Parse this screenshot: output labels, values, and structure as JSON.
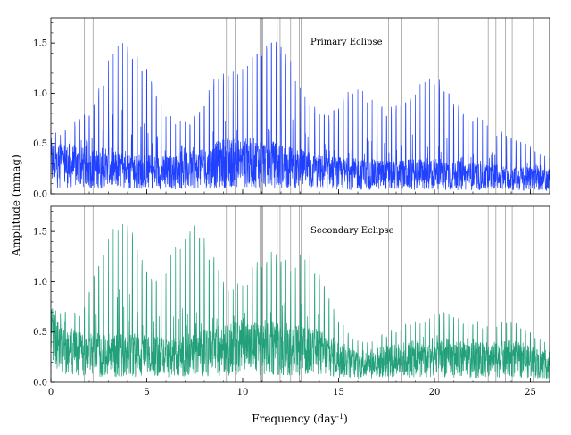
{
  "figure": {
    "xlabel_main": "Frequency (day",
    "xlabel_sup": "-1",
    "xlabel_end": ")",
    "ylabel": "Amplitude (mmag)"
  },
  "chart_data": [
    {
      "type": "line",
      "title": "Primary Eclipse",
      "xlabel": "Frequency (day-1)",
      "ylabel": "Amplitude (mmag)",
      "xlim": [
        0,
        26
      ],
      "ylim": [
        0,
        1.75
      ],
      "xticks": [
        0,
        5,
        10,
        15,
        20,
        25
      ],
      "yticks": [
        0.0,
        0.5,
        1.0,
        1.5
      ],
      "grid": false,
      "color": "#2040ff",
      "baseline": [
        [
          0,
          0.4
        ],
        [
          2,
          0.32
        ],
        [
          4,
          0.3
        ],
        [
          6,
          0.27
        ],
        [
          8,
          0.32
        ],
        [
          9,
          0.4
        ],
        [
          11,
          0.4
        ],
        [
          12,
          0.36
        ],
        [
          14,
          0.28
        ],
        [
          16,
          0.25
        ],
        [
          18,
          0.24
        ],
        [
          20,
          0.26
        ],
        [
          22,
          0.22
        ],
        [
          24,
          0.2
        ],
        [
          26,
          0.18
        ]
      ],
      "envelope": [
        [
          0.0,
          0.6
        ],
        [
          1.0,
          0.68
        ],
        [
          2.0,
          0.85
        ],
        [
          2.5,
          1.05
        ],
        [
          3.0,
          1.35
        ],
        [
          3.5,
          1.5
        ],
        [
          4.0,
          1.56
        ],
        [
          4.5,
          1.45
        ],
        [
          5.0,
          1.25
        ],
        [
          5.5,
          1.0
        ],
        [
          6.0,
          0.85
        ],
        [
          7.0,
          0.72
        ],
        [
          7.5,
          0.8
        ],
        [
          8.0,
          0.95
        ],
        [
          8.5,
          1.15
        ],
        [
          9.0,
          1.22
        ],
        [
          9.5,
          1.28
        ],
        [
          10.0,
          1.35
        ],
        [
          10.5,
          1.45
        ],
        [
          11.0,
          1.5
        ],
        [
          11.5,
          1.55
        ],
        [
          12.0,
          1.48
        ],
        [
          12.5,
          1.35
        ],
        [
          13.0,
          1.15
        ],
        [
          13.5,
          0.95
        ],
        [
          14.0,
          0.8
        ],
        [
          14.5,
          0.78
        ],
        [
          15.0,
          0.9
        ],
        [
          15.5,
          1.02
        ],
        [
          16.0,
          1.05
        ],
        [
          16.5,
          1.0
        ],
        [
          17.0,
          0.92
        ],
        [
          17.5,
          0.85
        ],
        [
          18.0,
          0.88
        ],
        [
          18.5,
          0.95
        ],
        [
          19.0,
          1.05
        ],
        [
          19.5,
          1.15
        ],
        [
          20.0,
          1.18
        ],
        [
          20.5,
          1.1
        ],
        [
          21.0,
          0.95
        ],
        [
          21.5,
          0.85
        ],
        [
          22.0,
          0.8
        ],
        [
          22.5,
          0.75
        ],
        [
          23.0,
          0.68
        ],
        [
          24.0,
          0.58
        ],
        [
          25.0,
          0.48
        ],
        [
          26.0,
          0.4
        ]
      ],
      "comb_spacing": 0.25
    },
    {
      "type": "line",
      "title": "Secondary Eclipse",
      "xlabel": "Frequency (day-1)",
      "ylabel": "Amplitude (mmag)",
      "xlim": [
        0,
        26
      ],
      "ylim": [
        0,
        1.75
      ],
      "xticks": [
        0,
        5,
        10,
        15,
        20,
        25
      ],
      "yticks": [
        0.0,
        0.5,
        1.0,
        1.5
      ],
      "grid": false,
      "color": "#22a07a",
      "baseline": [
        [
          0,
          0.55
        ],
        [
          1,
          0.4
        ],
        [
          2,
          0.35
        ],
        [
          4,
          0.35
        ],
        [
          6,
          0.32
        ],
        [
          8,
          0.38
        ],
        [
          10,
          0.45
        ],
        [
          12,
          0.45
        ],
        [
          13,
          0.4
        ],
        [
          14,
          0.38
        ],
        [
          15,
          0.3
        ],
        [
          16,
          0.22
        ],
        [
          18,
          0.28
        ],
        [
          20,
          0.32
        ],
        [
          22,
          0.28
        ],
        [
          24,
          0.3
        ],
        [
          26,
          0.22
        ]
      ],
      "envelope": [
        [
          0.0,
          0.75
        ],
        [
          1.0,
          0.7
        ],
        [
          1.5,
          0.72
        ],
        [
          2.0,
          0.9
        ],
        [
          2.5,
          1.3
        ],
        [
          3.0,
          1.55
        ],
        [
          3.5,
          1.65
        ],
        [
          4.0,
          1.6
        ],
        [
          4.5,
          1.4
        ],
        [
          5.0,
          1.15
        ],
        [
          5.5,
          1.05
        ],
        [
          6.0,
          1.2
        ],
        [
          6.5,
          1.4
        ],
        [
          7.0,
          1.55
        ],
        [
          7.5,
          1.62
        ],
        [
          8.0,
          1.45
        ],
        [
          8.5,
          1.25
        ],
        [
          9.0,
          1.0
        ],
        [
          9.5,
          0.95
        ],
        [
          10.0,
          1.05
        ],
        [
          10.5,
          1.15
        ],
        [
          11.0,
          1.25
        ],
        [
          11.5,
          1.3
        ],
        [
          12.0,
          1.28
        ],
        [
          12.5,
          1.22
        ],
        [
          13.0,
          1.28
        ],
        [
          13.5,
          1.3
        ],
        [
          14.0,
          1.1
        ],
        [
          14.5,
          0.85
        ],
        [
          15.0,
          0.65
        ],
        [
          15.5,
          0.5
        ],
        [
          16.0,
          0.42
        ],
        [
          17.0,
          0.45
        ],
        [
          18.0,
          0.55
        ],
        [
          19.0,
          0.62
        ],
        [
          20.0,
          0.68
        ],
        [
          20.5,
          0.72
        ],
        [
          21.0,
          0.65
        ],
        [
          22.0,
          0.62
        ],
        [
          23.0,
          0.6
        ],
        [
          24.0,
          0.62
        ],
        [
          25.0,
          0.5
        ],
        [
          26.0,
          0.38
        ]
      ],
      "comb_spacing": 0.25
    }
  ],
  "reference_lines": [
    1.75,
    2.2,
    9.15,
    9.6,
    10.9,
    11.0,
    11.05,
    11.8,
    11.95,
    12.5,
    12.95,
    13.05,
    17.6,
    18.3,
    20.2,
    22.8,
    23.2,
    23.7,
    24.05,
    25.15
  ],
  "reference_line_color": "#a0a0a0"
}
